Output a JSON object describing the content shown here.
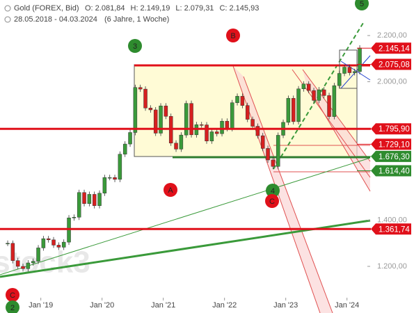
{
  "chart_data": {
    "type": "candlestick",
    "title": "Gold (FOREX, Bid)",
    "ohlc_labels": [
      "O: 2.081,84",
      "H: 2.149,19",
      "L: 2.079,31",
      "C: 2.145,93"
    ],
    "date_range": "28.05.2018 - 04.03.2024",
    "period": "(6 Jahre, 1 Woche)",
    "watermark": "stock3",
    "x": [
      "2018-06",
      "2018-07",
      "2018-08",
      "2018-09",
      "2018-10",
      "2018-11",
      "2018-12",
      "2019-01",
      "2019-02",
      "2019-03",
      "2019-04",
      "2019-05",
      "2019-06",
      "2019-07",
      "2019-08",
      "2019-09",
      "2019-10",
      "2019-11",
      "2019-12",
      "2020-01",
      "2020-02",
      "2020-03",
      "2020-04",
      "2020-05",
      "2020-06",
      "2020-07",
      "2020-08",
      "2020-09",
      "2020-10",
      "2020-11",
      "2020-12",
      "2021-01",
      "2021-02",
      "2021-03",
      "2021-04",
      "2021-05",
      "2021-06",
      "2021-07",
      "2021-08",
      "2021-09",
      "2021-10",
      "2021-11",
      "2021-12",
      "2022-01",
      "2022-02",
      "2022-03",
      "2022-04",
      "2022-05",
      "2022-06",
      "2022-07",
      "2022-08",
      "2022-09",
      "2022-10",
      "2022-11",
      "2022-12",
      "2023-01",
      "2023-02",
      "2023-03",
      "2023-04",
      "2023-05",
      "2023-06",
      "2023-07",
      "2023-08",
      "2023-09",
      "2023-10",
      "2023-11",
      "2023-12",
      "2024-01",
      "2024-02",
      "2024-03"
    ],
    "values": [
      1300,
      1225,
      1200,
      1190,
      1215,
      1222,
      1280,
      1320,
      1315,
      1292,
      1283,
      1305,
      1410,
      1413,
      1520,
      1472,
      1512,
      1463,
      1517,
      1585,
      1585,
      1577,
      1686,
      1730,
      1780,
      1975,
      1968,
      1886,
      1878,
      1777,
      1895,
      1850,
      1734,
      1708,
      1769,
      1906,
      1770,
      1814,
      1813,
      1743,
      1783,
      1775,
      1829,
      1797,
      1909,
      1937,
      1897,
      1837,
      1807,
      1766,
      1711,
      1661,
      1633,
      1768,
      1824,
      1928,
      1827,
      1969,
      1990,
      1962,
      1919,
      1965,
      1940,
      1849,
      1983,
      2036,
      2063,
      2039,
      2044,
      2145.93
    ],
    "up_color": "#3a9a3a",
    "down_color": "#d62020",
    "xlim": [
      "2018-05",
      "2024-05"
    ],
    "xticks": [
      {
        "value": "2019-01",
        "label": "Jan '19"
      },
      {
        "value": "2020-01",
        "label": "Jan '20"
      },
      {
        "value": "2021-01",
        "label": "Jan '21"
      },
      {
        "value": "2022-01",
        "label": "Jan '22"
      },
      {
        "value": "2023-01",
        "label": "Jan '23"
      },
      {
        "value": "2024-01",
        "label": "Jan '24"
      }
    ],
    "ylim": [
      998,
      2354
    ],
    "yticks": [
      {
        "value": 1200,
        "label": "1.200,00"
      },
      {
        "value": 1400,
        "label": "1.400,00"
      },
      {
        "value": 2000,
        "label": "2.000,00"
      },
      {
        "value": 2200,
        "label": "2.200,00"
      }
    ],
    "levels": [
      {
        "value": 2145.14,
        "label": "2.145,14",
        "color": "#e0101a"
      },
      {
        "value": 2075.08,
        "label": "2.075,08",
        "color": "#e0101a"
      },
      {
        "value": 1795.9,
        "label": "1.795,90",
        "color": "#e0101a"
      },
      {
        "value": 1729.1,
        "label": "1.729,10",
        "color": "#e0101a"
      },
      {
        "value": 1676.3,
        "label": "1.676,30",
        "color": "#2e8b2e"
      },
      {
        "value": 1614.4,
        "label": "1.614,40",
        "color": "#2e8b2e"
      },
      {
        "value": 1361.74,
        "label": "1.361,74",
        "color": "#e0101a"
      }
    ],
    "markers": [
      {
        "label": "5",
        "color": "#2e8b2e"
      },
      {
        "label": "B",
        "color": "#e0101a"
      },
      {
        "label": "3",
        "color": "#2e8b2e"
      },
      {
        "label": "A",
        "color": "#e0101a"
      },
      {
        "label": "4",
        "color": "#2e8b2e"
      },
      {
        "label": "C",
        "color": "#e0101a"
      },
      {
        "label": "C",
        "color": "#e0101a"
      },
      {
        "label": "2",
        "color": "#2e8b2e"
      }
    ]
  }
}
